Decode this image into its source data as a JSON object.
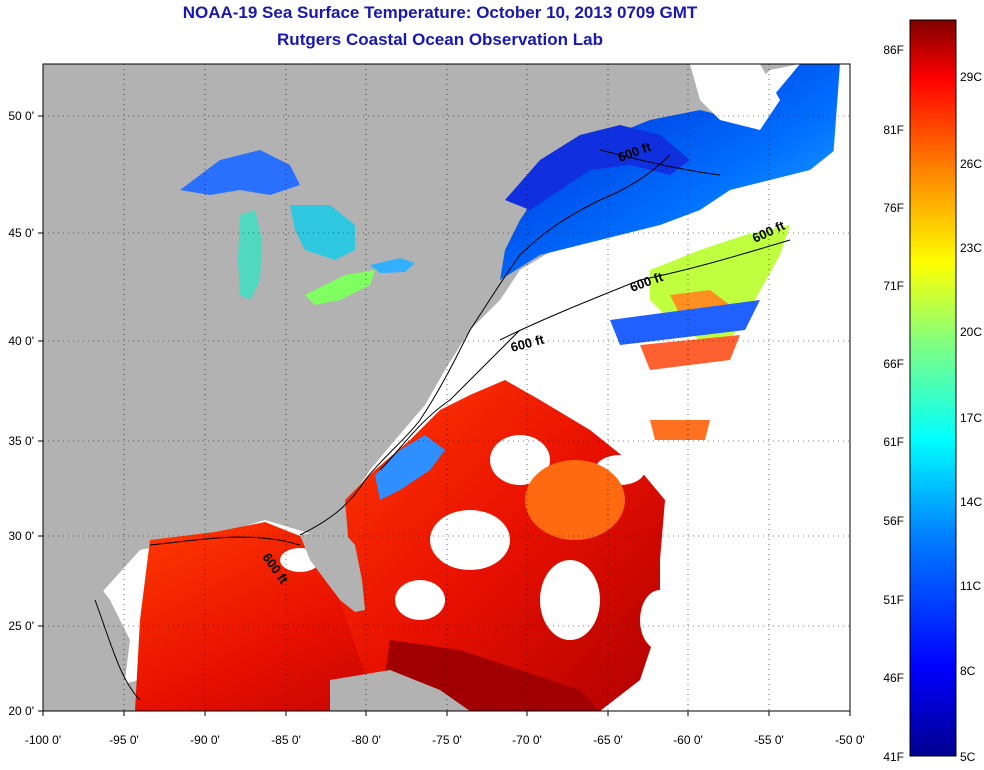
{
  "header": {
    "title": "NOAA-19 Sea Surface Temperature:  October 10, 2013 0709 GMT",
    "subtitle": "Rutgers Coastal Ocean Observation Lab"
  },
  "map": {
    "lon_range": [
      -100,
      -50
    ],
    "lat_range": [
      20,
      52.5
    ],
    "lon_ticks": [
      "-100 0'",
      "-95 0'",
      "-90 0'",
      "-85 0'",
      "-80 0'",
      "-75 0'",
      "-70 0'",
      "-65 0'",
      "-60 0'",
      "-55 0'",
      "-50 0'"
    ],
    "lat_ticks": [
      "50 0'",
      "45 0'",
      "40 0'",
      "35 0'",
      "30 0'",
      "25 0'",
      "20 0'"
    ],
    "contour_labels": [
      "600 ft",
      "600 ft",
      "600 ft",
      "600 ft",
      "600 ft"
    ],
    "colors": {
      "land": "#b2b2b2",
      "cloud": "#ffffff",
      "coast": "#000000"
    }
  },
  "colorbar": {
    "fahrenheit_labels": [
      "86F",
      "81F",
      "76F",
      "71F",
      "66F",
      "61F",
      "56F",
      "51F",
      "46F",
      "41F"
    ],
    "celsius_labels": [
      "29C",
      "26C",
      "23C",
      "20C",
      "17C",
      "14C",
      "11C",
      "8C",
      "5C"
    ],
    "colors": [
      "#00008f",
      "#0000ff",
      "#0080ff",
      "#00ffff",
      "#80ff80",
      "#ffff00",
      "#ff8000",
      "#ff0000",
      "#800000"
    ]
  }
}
